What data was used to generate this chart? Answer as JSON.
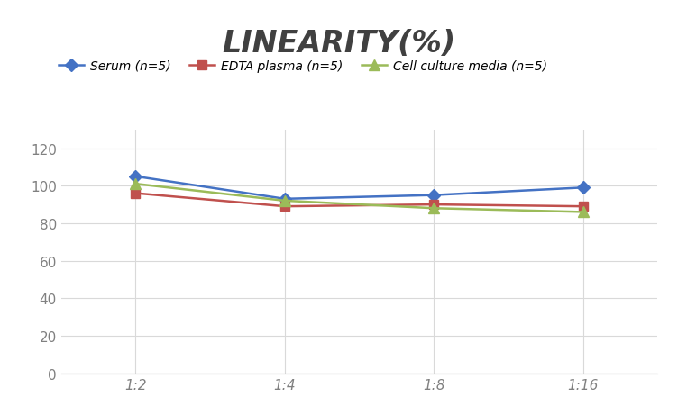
{
  "title": "LINEARITY(%)",
  "x_labels": [
    "1:2",
    "1:4",
    "1:8",
    "1:16"
  ],
  "x_positions": [
    0,
    1,
    2,
    3
  ],
  "series": [
    {
      "label": "Serum (n=5)",
      "values": [
        105,
        93,
        95,
        99
      ],
      "color": "#4472C4",
      "marker": "D",
      "markersize": 7,
      "linewidth": 1.8
    },
    {
      "label": "EDTA plasma (n=5)",
      "values": [
        96,
        89,
        90,
        89
      ],
      "color": "#C0504D",
      "marker": "s",
      "markersize": 7,
      "linewidth": 1.8
    },
    {
      "label": "Cell culture media (n=5)",
      "values": [
        101,
        92,
        88,
        86
      ],
      "color": "#9BBB59",
      "marker": "^",
      "markersize": 8,
      "linewidth": 1.8
    }
  ],
  "ylim": [
    0,
    130
  ],
  "yticks": [
    0,
    20,
    40,
    60,
    80,
    100,
    120
  ],
  "grid_color": "#D9D9D9",
  "grid_linewidth": 0.8,
  "background_color": "#FFFFFF",
  "title_fontsize": 24,
  "title_color": "#404040",
  "legend_fontsize": 10,
  "tick_fontsize": 11,
  "tick_color": "#808080"
}
